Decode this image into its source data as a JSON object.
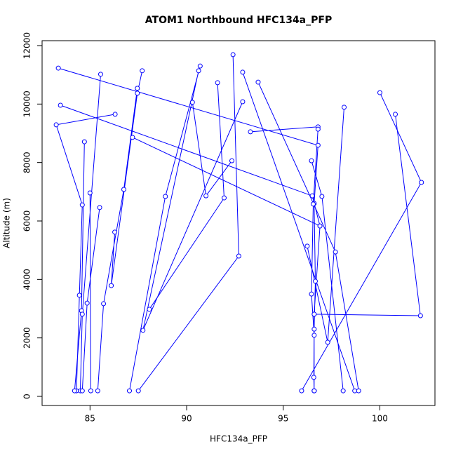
{
  "chart_data": {
    "type": "line",
    "title": "ATOM1 Northbound HFC134a_PFP",
    "x_label": "HFC134a_PFP",
    "y_label": "Altitude (m)",
    "color": "#0000ff",
    "markers": true,
    "x": [
      83.36,
      96.8,
      96.6,
      96.66,
      96.6,
      96.58,
      96.6,
      null,
      83.47,
      96.5,
      96.9,
      96.6,
      96.6,
      null,
      86.3,
      83.25,
      84.6,
      84.45,
      84.3,
      null,
      84.71,
      84.56,
      84.2,
      null,
      85.55,
      84.6,
      84.5,
      null,
      85.5,
      84.85,
      84.6,
      null,
      85.0,
      85.04,
      null,
      87.45,
      86.75,
      85.7,
      85.4,
      null,
      87.7,
      87.45,
      86.1,
      86.28,
      null,
      90.7,
      88.9,
      87.04,
      null,
      90.62,
      87.74,
      92.9,
      null,
      90.3,
      91.0,
      92.34,
      null,
      92.4,
      92.7,
      87.5,
      null,
      92.9,
      98.7,
      null,
      91.6,
      91.94,
      88.07,
      null,
      93.7,
      97.7,
      98.9,
      null,
      93.3,
      96.8,
      96.8,
      96.55,
      96.46,
      96.6,
      96.6,
      null,
      96.46,
      97.0,
      98.1,
      null,
      98.15,
      97.3,
      96.24,
      null,
      100.0,
      102.15,
      95.95,
      null,
      100.8,
      102.1,
      96.6,
      null,
      87.2,
      96.9
    ],
    "values": [
      11230,
      8590,
      6600,
      3940,
      2300,
      650,
      190,
      null,
      9960,
      6860,
      5830,
      2810,
      190,
      null,
      9650,
      9290,
      6550,
      3460,
      190,
      null,
      8710,
      2930,
      190,
      null,
      11020,
      2810,
      190,
      null,
      6460,
      3190,
      190,
      null,
      6960,
      190,
      null,
      10540,
      7080,
      3170,
      190,
      null,
      11140,
      10370,
      3790,
      5620,
      null,
      11300,
      6840,
      190,
      null,
      11140,
      2260,
      10080,
      null,
      10060,
      6860,
      8060,
      null,
      11690,
      4800,
      190,
      null,
      11090,
      190,
      null,
      10730,
      6790,
      2980,
      null,
      10750,
      4940,
      190,
      null,
      9050,
      9220,
      9140,
      6580,
      3500,
      2090,
      190,
      null,
      8060,
      6840,
      190,
      null,
      9890,
      1850,
      5140,
      null,
      10390,
      7320,
      190,
      null,
      9650,
      2760,
      2810,
      null,
      8860,
      5830
    ],
    "xlim": [
      82.52,
      102.85
    ],
    "xticks": [
      85,
      90,
      95,
      100
    ],
    "ylim": [
      -312,
      12168
    ],
    "yticks": [
      0,
      2000,
      4000,
      6000,
      8000,
      10000,
      12000
    ]
  }
}
